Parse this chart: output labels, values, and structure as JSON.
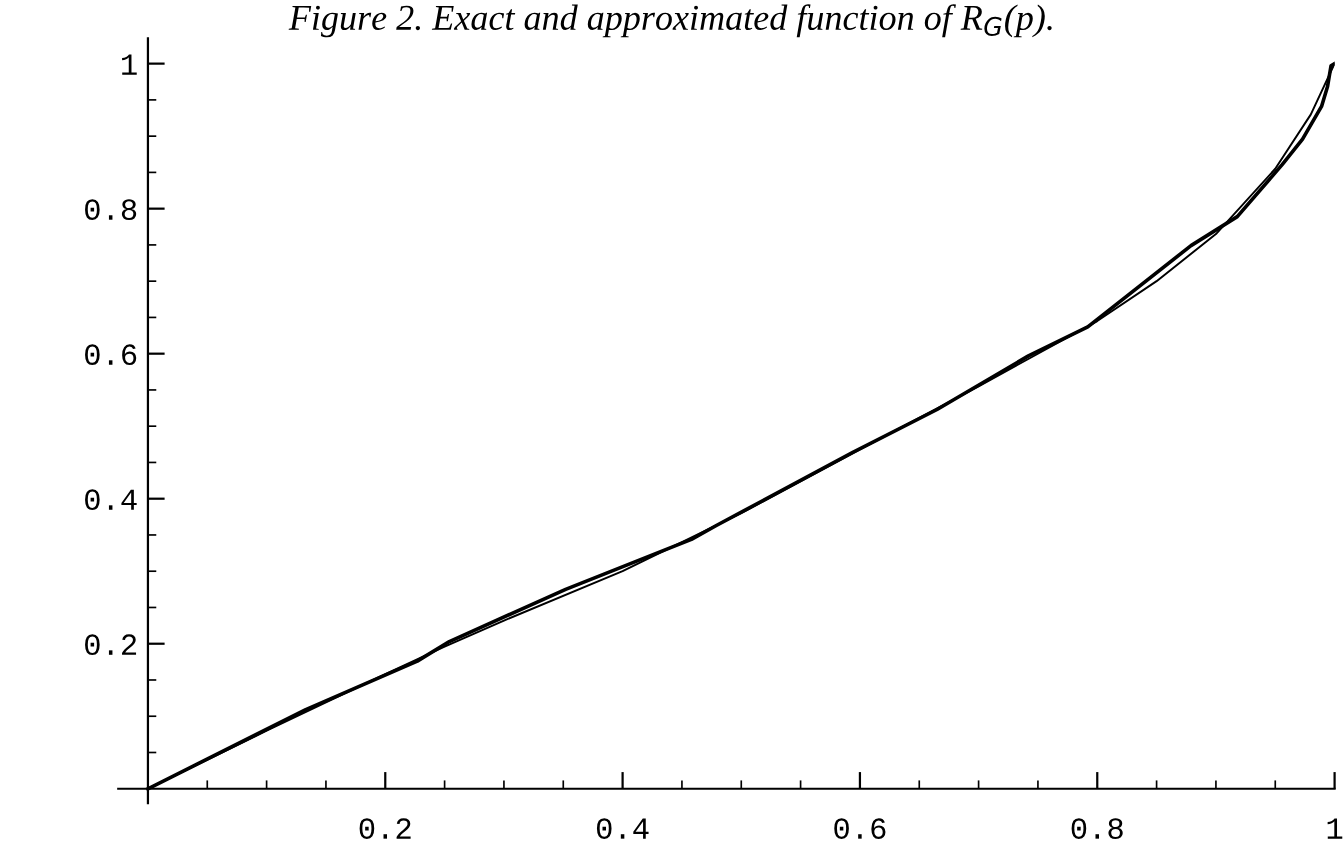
{
  "chart_data": {
    "type": "line",
    "title": "Figure 2. Exact and approximated function of R$_{G}$(p).",
    "xlim": [
      -0.025,
      1.0
    ],
    "ylim": [
      -0.02,
      1.035
    ],
    "xticks": [
      {
        "value": 0.05,
        "label": null
      },
      {
        "value": 0.1,
        "label": null
      },
      {
        "value": 0.15,
        "label": null
      },
      0.2,
      {
        "value": 0.25,
        "label": null
      },
      {
        "value": 0.3,
        "label": null
      },
      {
        "value": 0.35,
        "label": null
      },
      0.4,
      {
        "value": 0.45,
        "label": null
      },
      {
        "value": 0.5,
        "label": null
      },
      {
        "value": 0.55,
        "label": null
      },
      0.6,
      {
        "value": 0.65,
        "label": null
      },
      {
        "value": 0.7,
        "label": null
      },
      {
        "value": 0.75,
        "label": null
      },
      0.8,
      {
        "value": 0.85,
        "label": null
      },
      {
        "value": 0.9,
        "label": null
      },
      {
        "value": 0.95,
        "label": null
      },
      1
    ],
    "yticks": [
      {
        "value": 0.05,
        "label": null
      },
      {
        "value": 0.1,
        "label": null
      },
      {
        "value": 0.15,
        "label": null
      },
      0.2,
      {
        "value": 0.25,
        "label": null
      },
      {
        "value": 0.3,
        "label": null
      },
      {
        "value": 0.35,
        "label": null
      },
      0.4,
      {
        "value": 0.45,
        "label": null
      },
      {
        "value": 0.5,
        "label": null
      },
      {
        "value": 0.55,
        "label": null
      },
      0.6,
      {
        "value": 0.65,
        "label": null
      },
      {
        "value": 0.7,
        "label": null
      },
      {
        "value": 0.75,
        "label": null
      },
      0.8,
      {
        "value": 0.85,
        "label": null
      },
      {
        "value": 0.9,
        "label": null
      },
      {
        "value": 0.95,
        "label": null
      },
      1
    ],
    "grid": false,
    "legend": false,
    "marker": "none",
    "line_style": "solid",
    "series": [
      {
        "color": "#000000",
        "x": [
          0,
          0.133,
          0.227,
          0.254,
          0.352,
          0.458,
          0.479,
          0.594,
          0.665,
          0.742,
          0.792,
          0.879,
          0.918,
          0.956,
          0.973,
          0.989,
          0.994,
          0.997,
          1.0
        ],
        "values": [
          0,
          0.109,
          0.176,
          0.203,
          0.275,
          0.344,
          0.363,
          0.464,
          0.523,
          0.597,
          0.637,
          0.749,
          0.789,
          0.861,
          0.896,
          0.941,
          0.968,
          0.997,
          1.0
        ]
      },
      {
        "color": "#000000",
        "x": [
          0,
          0.1,
          0.2,
          0.25,
          0.3,
          0.4,
          0.5,
          0.6,
          0.7,
          0.8,
          0.85,
          0.9,
          0.95,
          0.98,
          1.0
        ],
        "values": [
          0,
          0.08,
          0.158,
          0.196,
          0.232,
          0.3,
          0.38,
          0.468,
          0.555,
          0.645,
          0.7,
          0.765,
          0.855,
          0.93,
          1.0
        ]
      }
    ]
  }
}
